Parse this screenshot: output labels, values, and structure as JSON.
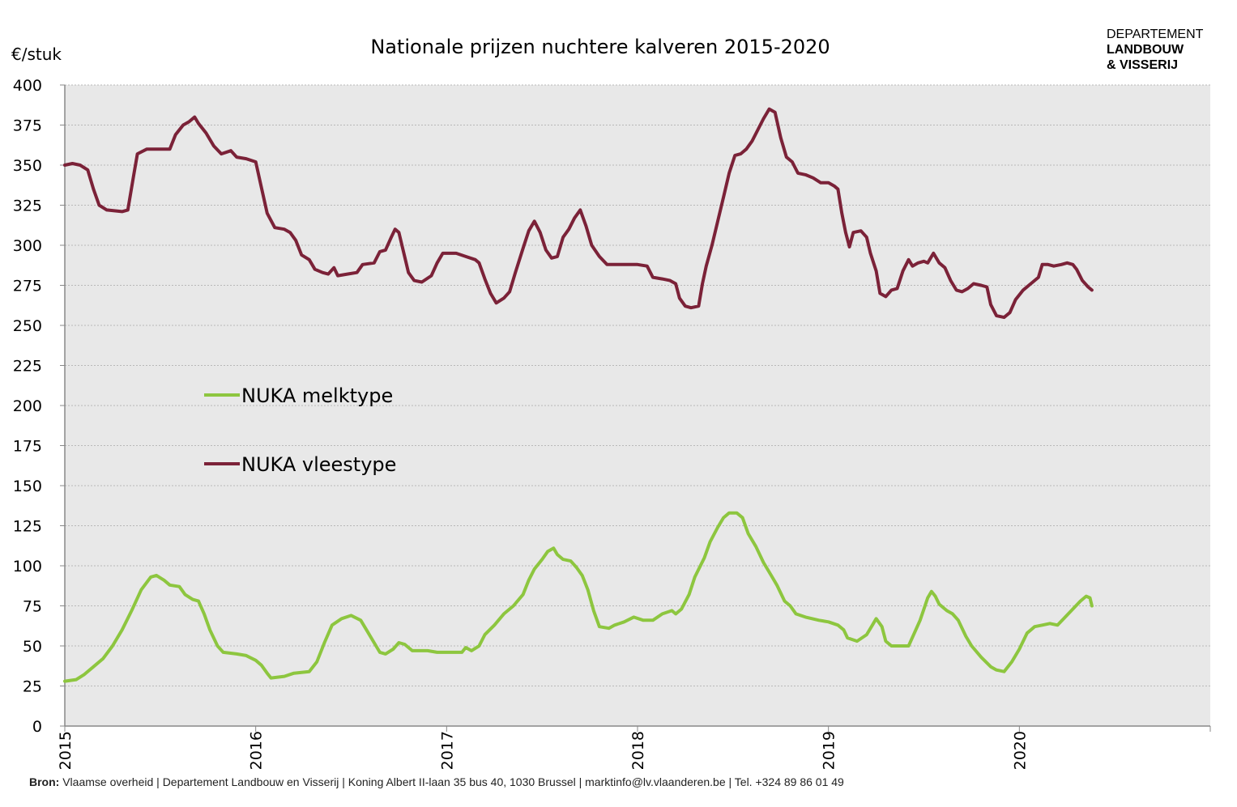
{
  "logo": {
    "line1": "DEPARTEMENT",
    "line2": "LANDBOUW",
    "line3": "& VISSERIJ"
  },
  "source": {
    "label": "Bron:",
    "text": "Vlaamse overheid | Departement Landbouw en Visserij | Koning Albert II-laan 35 bus 40, 1030 Brussel | marktinfo@lv.vlaanderen.be | Tel. +324 89 86 01 49"
  },
  "chart_data": {
    "type": "line",
    "title": "Nationale prijzen nuchtere kalveren 2015-2020",
    "ylabel": "€/stuk",
    "xlabel": "",
    "ylim": [
      0,
      400
    ],
    "yticks": [
      0,
      25,
      50,
      75,
      100,
      125,
      150,
      175,
      200,
      225,
      250,
      275,
      300,
      325,
      350,
      375,
      400
    ],
    "xlim": [
      2015,
      2021
    ],
    "xticks": [
      "2015",
      "2016",
      "2017",
      "2018",
      "2019",
      "2020"
    ],
    "grid": true,
    "legend": "inside-left",
    "colors": {
      "plot_background": "#e8e8e8",
      "gridline": "#b8b8b8",
      "melktype": "#8dc63f",
      "vleestype": "#7b2238"
    },
    "series": [
      {
        "name": "NUKA melktype",
        "color": "#8dc63f",
        "points": [
          [
            2015.0,
            28
          ],
          [
            2015.06,
            29
          ],
          [
            2015.1,
            32
          ],
          [
            2015.15,
            37
          ],
          [
            2015.2,
            42
          ],
          [
            2015.25,
            50
          ],
          [
            2015.3,
            60
          ],
          [
            2015.35,
            72
          ],
          [
            2015.4,
            85
          ],
          [
            2015.45,
            93
          ],
          [
            2015.48,
            94
          ],
          [
            2015.52,
            91
          ],
          [
            2015.55,
            88
          ],
          [
            2015.6,
            87
          ],
          [
            2015.63,
            82
          ],
          [
            2015.67,
            79
          ],
          [
            2015.7,
            78
          ],
          [
            2015.73,
            70
          ],
          [
            2015.76,
            60
          ],
          [
            2015.8,
            50
          ],
          [
            2015.83,
            46
          ],
          [
            2015.9,
            45
          ],
          [
            2015.95,
            44
          ],
          [
            2016.0,
            41
          ],
          [
            2016.03,
            38
          ],
          [
            2016.06,
            33
          ],
          [
            2016.08,
            30
          ],
          [
            2016.15,
            31
          ],
          [
            2016.2,
            33
          ],
          [
            2016.28,
            34
          ],
          [
            2016.32,
            40
          ],
          [
            2016.36,
            52
          ],
          [
            2016.4,
            63
          ],
          [
            2016.45,
            67
          ],
          [
            2016.5,
            69
          ],
          [
            2016.55,
            66
          ],
          [
            2016.58,
            60
          ],
          [
            2016.62,
            52
          ],
          [
            2016.65,
            46
          ],
          [
            2016.68,
            45
          ],
          [
            2016.72,
            48
          ],
          [
            2016.75,
            52
          ],
          [
            2016.78,
            51
          ],
          [
            2016.82,
            47
          ],
          [
            2016.9,
            47
          ],
          [
            2016.95,
            46
          ],
          [
            2017.0,
            46
          ],
          [
            2017.08,
            46
          ],
          [
            2017.1,
            49
          ],
          [
            2017.13,
            47
          ],
          [
            2017.17,
            50
          ],
          [
            2017.2,
            57
          ],
          [
            2017.25,
            63
          ],
          [
            2017.3,
            70
          ],
          [
            2017.35,
            75
          ],
          [
            2017.4,
            82
          ],
          [
            2017.43,
            91
          ],
          [
            2017.46,
            98
          ],
          [
            2017.5,
            104
          ],
          [
            2017.53,
            109
          ],
          [
            2017.56,
            111
          ],
          [
            2017.58,
            107
          ],
          [
            2017.61,
            104
          ],
          [
            2017.65,
            103
          ],
          [
            2017.68,
            99
          ],
          [
            2017.71,
            94
          ],
          [
            2017.74,
            85
          ],
          [
            2017.77,
            72
          ],
          [
            2017.8,
            62
          ],
          [
            2017.85,
            61
          ],
          [
            2017.88,
            63
          ],
          [
            2017.93,
            65
          ],
          [
            2017.98,
            68
          ],
          [
            2018.03,
            66
          ],
          [
            2018.08,
            66
          ],
          [
            2018.13,
            70
          ],
          [
            2018.18,
            72
          ],
          [
            2018.2,
            70
          ],
          [
            2018.23,
            73
          ],
          [
            2018.27,
            82
          ],
          [
            2018.3,
            93
          ],
          [
            2018.35,
            105
          ],
          [
            2018.38,
            115
          ],
          [
            2018.42,
            124
          ],
          [
            2018.45,
            130
          ],
          [
            2018.48,
            133
          ],
          [
            2018.52,
            133
          ],
          [
            2018.55,
            130
          ],
          [
            2018.58,
            120
          ],
          [
            2018.62,
            112
          ],
          [
            2018.66,
            102
          ],
          [
            2018.7,
            94
          ],
          [
            2018.73,
            88
          ],
          [
            2018.77,
            78
          ],
          [
            2018.8,
            75
          ],
          [
            2018.83,
            70
          ],
          [
            2018.88,
            68
          ],
          [
            2018.95,
            66
          ],
          [
            2019.0,
            65
          ],
          [
            2019.05,
            63
          ],
          [
            2019.08,
            60
          ],
          [
            2019.1,
            55
          ],
          [
            2019.15,
            53
          ],
          [
            2019.2,
            57
          ],
          [
            2019.23,
            63
          ],
          [
            2019.25,
            67
          ],
          [
            2019.28,
            62
          ],
          [
            2019.3,
            53
          ],
          [
            2019.33,
            50
          ],
          [
            2019.38,
            50
          ],
          [
            2019.42,
            50
          ],
          [
            2019.45,
            58
          ],
          [
            2019.48,
            66
          ],
          [
            2019.5,
            73
          ],
          [
            2019.52,
            80
          ],
          [
            2019.54,
            84
          ],
          [
            2019.56,
            81
          ],
          [
            2019.58,
            76
          ],
          [
            2019.62,
            72
          ],
          [
            2019.65,
            70
          ],
          [
            2019.68,
            66
          ],
          [
            2019.72,
            56
          ],
          [
            2019.75,
            50
          ],
          [
            2019.8,
            43
          ],
          [
            2019.85,
            37
          ],
          [
            2019.88,
            35
          ],
          [
            2019.92,
            34
          ],
          [
            2019.96,
            40
          ],
          [
            2020.0,
            48
          ],
          [
            2020.04,
            58
          ],
          [
            2020.08,
            62
          ],
          [
            2020.12,
            63
          ],
          [
            2020.16,
            64
          ],
          [
            2020.2,
            63
          ],
          [
            2020.24,
            68
          ],
          [
            2020.28,
            73
          ],
          [
            2020.32,
            78
          ],
          [
            2020.35,
            81
          ],
          [
            2020.37,
            80
          ],
          [
            2020.38,
            75
          ]
        ]
      },
      {
        "name": "NUKA vleestype",
        "color": "#7b2238",
        "points": [
          [
            2015.0,
            350
          ],
          [
            2015.04,
            351
          ],
          [
            2015.08,
            350
          ],
          [
            2015.12,
            347
          ],
          [
            2015.15,
            335
          ],
          [
            2015.18,
            325
          ],
          [
            2015.22,
            322
          ],
          [
            2015.3,
            321
          ],
          [
            2015.33,
            322
          ],
          [
            2015.36,
            343
          ],
          [
            2015.38,
            357
          ],
          [
            2015.43,
            360
          ],
          [
            2015.5,
            360
          ],
          [
            2015.55,
            360
          ],
          [
            2015.58,
            369
          ],
          [
            2015.62,
            375
          ],
          [
            2015.65,
            377
          ],
          [
            2015.68,
            380
          ],
          [
            2015.7,
            376
          ],
          [
            2015.74,
            370
          ],
          [
            2015.78,
            362
          ],
          [
            2015.82,
            357
          ],
          [
            2015.87,
            359
          ],
          [
            2015.9,
            355
          ],
          [
            2015.95,
            354
          ],
          [
            2016.0,
            352
          ],
          [
            2016.03,
            336
          ],
          [
            2016.06,
            320
          ],
          [
            2016.1,
            311
          ],
          [
            2016.15,
            310
          ],
          [
            2016.18,
            308
          ],
          [
            2016.21,
            303
          ],
          [
            2016.24,
            294
          ],
          [
            2016.28,
            291
          ],
          [
            2016.31,
            285
          ],
          [
            2016.35,
            283
          ],
          [
            2016.38,
            282
          ],
          [
            2016.41,
            286
          ],
          [
            2016.43,
            281
          ],
          [
            2016.48,
            282
          ],
          [
            2016.53,
            283
          ],
          [
            2016.56,
            288
          ],
          [
            2016.62,
            289
          ],
          [
            2016.65,
            296
          ],
          [
            2016.68,
            297
          ],
          [
            2016.71,
            305
          ],
          [
            2016.73,
            310
          ],
          [
            2016.75,
            308
          ],
          [
            2016.78,
            293
          ],
          [
            2016.8,
            283
          ],
          [
            2016.83,
            278
          ],
          [
            2016.87,
            277
          ],
          [
            2016.92,
            281
          ],
          [
            2016.95,
            289
          ],
          [
            2016.98,
            295
          ],
          [
            2017.05,
            295
          ],
          [
            2017.1,
            293
          ],
          [
            2017.15,
            291
          ],
          [
            2017.17,
            289
          ],
          [
            2017.2,
            279
          ],
          [
            2017.23,
            270
          ],
          [
            2017.26,
            264
          ],
          [
            2017.3,
            267
          ],
          [
            2017.33,
            271
          ],
          [
            2017.36,
            283
          ],
          [
            2017.4,
            298
          ],
          [
            2017.43,
            309
          ],
          [
            2017.46,
            315
          ],
          [
            2017.49,
            308
          ],
          [
            2017.52,
            297
          ],
          [
            2017.55,
            292
          ],
          [
            2017.58,
            293
          ],
          [
            2017.61,
            305
          ],
          [
            2017.64,
            310
          ],
          [
            2017.67,
            317
          ],
          [
            2017.7,
            322
          ],
          [
            2017.73,
            312
          ],
          [
            2017.76,
            300
          ],
          [
            2017.8,
            293
          ],
          [
            2017.84,
            288
          ],
          [
            2017.88,
            288
          ],
          [
            2017.93,
            288
          ],
          [
            2018.0,
            288
          ],
          [
            2018.05,
            287
          ],
          [
            2018.08,
            280
          ],
          [
            2018.13,
            279
          ],
          [
            2018.17,
            278
          ],
          [
            2018.2,
            276
          ],
          [
            2018.22,
            267
          ],
          [
            2018.25,
            262
          ],
          [
            2018.28,
            261
          ],
          [
            2018.32,
            262
          ],
          [
            2018.34,
            276
          ],
          [
            2018.36,
            287
          ],
          [
            2018.39,
            300
          ],
          [
            2018.42,
            315
          ],
          [
            2018.45,
            330
          ],
          [
            2018.48,
            345
          ],
          [
            2018.51,
            356
          ],
          [
            2018.54,
            357
          ],
          [
            2018.57,
            360
          ],
          [
            2018.6,
            365
          ],
          [
            2018.63,
            372
          ],
          [
            2018.66,
            379
          ],
          [
            2018.69,
            385
          ],
          [
            2018.72,
            383
          ],
          [
            2018.75,
            367
          ],
          [
            2018.78,
            355
          ],
          [
            2018.81,
            352
          ],
          [
            2018.84,
            345
          ],
          [
            2018.88,
            344
          ],
          [
            2018.92,
            342
          ],
          [
            2018.96,
            339
          ],
          [
            2019.0,
            339
          ],
          [
            2019.03,
            337
          ],
          [
            2019.05,
            335
          ],
          [
            2019.07,
            320
          ],
          [
            2019.09,
            308
          ],
          [
            2019.11,
            299
          ],
          [
            2019.13,
            308
          ],
          [
            2019.17,
            309
          ],
          [
            2019.2,
            305
          ],
          [
            2019.22,
            295
          ],
          [
            2019.25,
            284
          ],
          [
            2019.27,
            270
          ],
          [
            2019.3,
            268
          ],
          [
            2019.33,
            272
          ],
          [
            2019.36,
            273
          ],
          [
            2019.39,
            284
          ],
          [
            2019.42,
            291
          ],
          [
            2019.44,
            287
          ],
          [
            2019.47,
            289
          ],
          [
            2019.5,
            290
          ],
          [
            2019.52,
            289
          ],
          [
            2019.55,
            295
          ],
          [
            2019.58,
            289
          ],
          [
            2019.61,
            286
          ],
          [
            2019.64,
            278
          ],
          [
            2019.67,
            272
          ],
          [
            2019.7,
            271
          ],
          [
            2019.73,
            273
          ],
          [
            2019.76,
            276
          ],
          [
            2019.8,
            275
          ],
          [
            2019.83,
            274
          ],
          [
            2019.85,
            263
          ],
          [
            2019.88,
            256
          ],
          [
            2019.92,
            255
          ],
          [
            2019.95,
            258
          ],
          [
            2019.98,
            266
          ],
          [
            2020.02,
            272
          ],
          [
            2020.06,
            276
          ],
          [
            2020.1,
            280
          ],
          [
            2020.12,
            288
          ],
          [
            2020.15,
            288
          ],
          [
            2020.18,
            287
          ],
          [
            2020.22,
            288
          ],
          [
            2020.25,
            289
          ],
          [
            2020.28,
            288
          ],
          [
            2020.3,
            285
          ],
          [
            2020.33,
            278
          ],
          [
            2020.36,
            274
          ],
          [
            2020.38,
            272
          ]
        ]
      }
    ]
  }
}
